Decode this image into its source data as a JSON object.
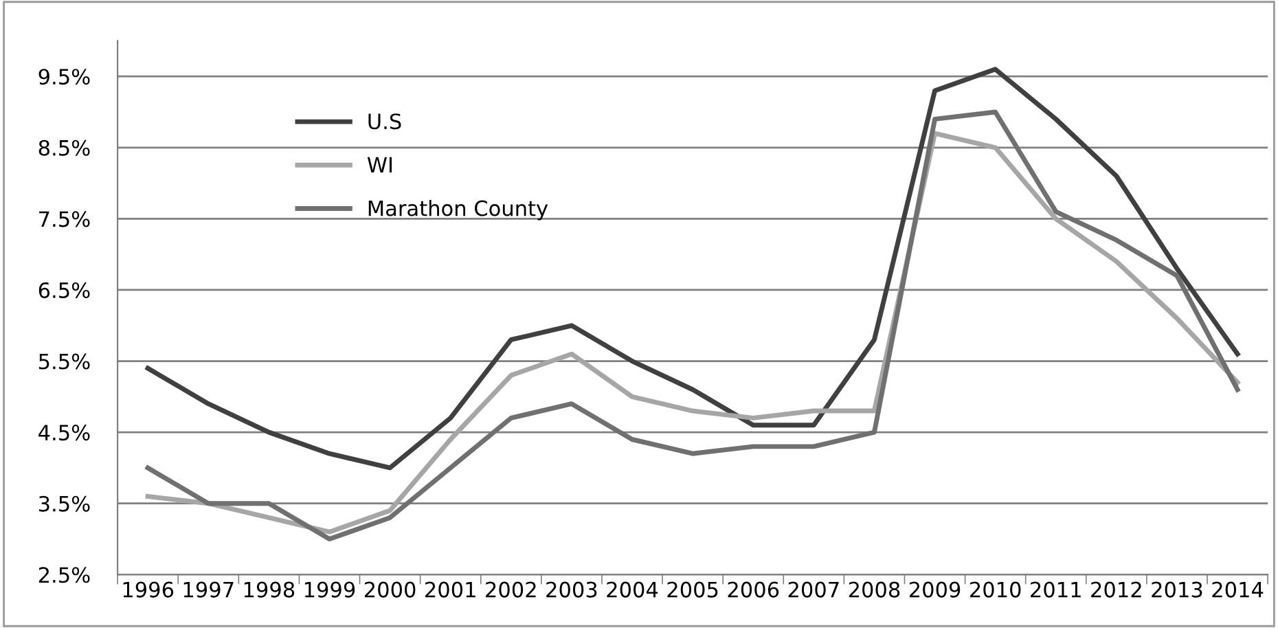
{
  "chart_data": {
    "type": "line",
    "categories": [
      "1996",
      "1997",
      "1998",
      "1999",
      "2000",
      "2001",
      "2002",
      "2003",
      "2004",
      "2005",
      "2006",
      "2007",
      "2008",
      "2009",
      "2010",
      "2011",
      "2012",
      "2013",
      "2014"
    ],
    "series": [
      {
        "name": "U.S",
        "color": "#404040",
        "values": [
          5.4,
          4.9,
          4.5,
          4.2,
          4.0,
          4.7,
          5.8,
          6.0,
          5.5,
          5.1,
          4.6,
          4.6,
          5.8,
          9.3,
          9.6,
          8.9,
          8.1,
          6.8,
          5.6
        ]
      },
      {
        "name": "WI",
        "color": "#a6a6a6",
        "values": [
          3.6,
          3.5,
          3.3,
          3.1,
          3.4,
          4.4,
          5.3,
          5.6,
          5.0,
          4.8,
          4.7,
          4.8,
          4.8,
          8.7,
          8.5,
          7.5,
          6.9,
          6.1,
          5.2
        ]
      },
      {
        "name": "Marathon County",
        "color": "#707070",
        "values": [
          4.0,
          3.5,
          3.5,
          3.0,
          3.3,
          4.0,
          4.7,
          4.9,
          4.4,
          4.2,
          4.3,
          4.3,
          4.5,
          8.9,
          9.0,
          7.6,
          7.2,
          6.7,
          5.1
        ]
      }
    ],
    "ylim": [
      2.5,
      10.0
    ],
    "yticks": [
      {
        "value": 2.5,
        "label": "2.5%"
      },
      {
        "value": 3.5,
        "label": "3.5%"
      },
      {
        "value": 4.5,
        "label": "4.5%"
      },
      {
        "value": 5.5,
        "label": "5.5%"
      },
      {
        "value": 6.5,
        "label": "6.5%"
      },
      {
        "value": 7.5,
        "label": "7.5%"
      },
      {
        "value": 8.5,
        "label": "8.5%"
      },
      {
        "value": 9.5,
        "label": "9.5%"
      }
    ],
    "grid": "y",
    "legend": "top left",
    "marker": "none",
    "line_style": "solid"
  }
}
